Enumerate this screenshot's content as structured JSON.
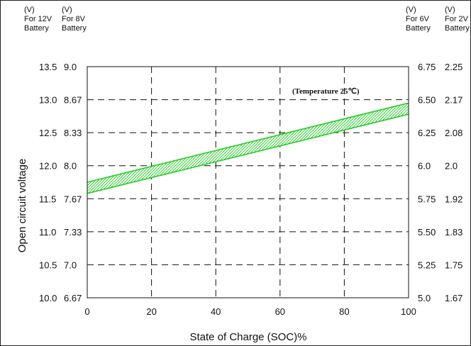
{
  "chart_data": {
    "type": "area",
    "xlabel": "State of Charge (SOC)%",
    "ylabel": "Open circuit voltage",
    "annotation": "(Temperature 25℃)",
    "xlim": [
      0,
      100
    ],
    "ylim": [
      10.0,
      13.5
    ],
    "x_ticks": [
      "0",
      "20",
      "40",
      "60",
      "80",
      "100"
    ],
    "grid": true,
    "left_axes": [
      {
        "header": [
          "(V)",
          "For 12V",
          "Battery"
        ],
        "ticks": [
          "13.5",
          "13.0",
          "12.5",
          "12.0",
          "11.5",
          "11.0",
          "10.5",
          "10.0"
        ]
      },
      {
        "header": [
          "(V)",
          "For 8V",
          "Battery"
        ],
        "ticks": [
          "9.0",
          "8.67",
          "8.33",
          "8.0",
          "7.67",
          "7.33",
          "7.0",
          "6.67"
        ]
      }
    ],
    "right_axes": [
      {
        "header": [
          "(V)",
          "For 6V",
          "Battery"
        ],
        "ticks": [
          "6.75",
          "6.50",
          "6.25",
          "6.0",
          "5.75",
          "5.50",
          "5.25",
          "5.0"
        ]
      },
      {
        "header": [
          "(V)",
          "For 2V",
          "Battery"
        ],
        "ticks": [
          "2.25",
          "2.17",
          "2.08",
          "2.0",
          "1.92",
          "1.83",
          "1.75",
          "1.67"
        ]
      }
    ],
    "band": {
      "x": [
        0,
        100
      ],
      "upper": [
        11.75,
        12.95
      ],
      "lower": [
        11.58,
        12.78
      ]
    },
    "band_color": "#22cc22"
  }
}
